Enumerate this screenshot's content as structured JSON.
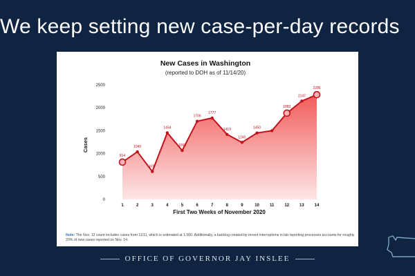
{
  "slide": {
    "title": "We keep setting new case-per-day records",
    "note_label": "Note:",
    "note_text": " The Nov. 12 count includes cases from 11/11, which is estimated at 1,500. Additionally, a backlog created by recent interruptions in lab reporting processes accounts for roughly 20% of new cases reported on Nov. 14.",
    "footer": "Office of Governor Jay Inslee",
    "logo_icon": "washington-state-map-icon"
  },
  "chart_data": {
    "type": "area",
    "title": "New Cases in Washington",
    "subtitle": "(reported to DOH as of 11/14/20)",
    "xlabel": "First Two Weeks of November 2020",
    "ylabel": "Cases",
    "x": [
      1,
      2,
      3,
      4,
      5,
      6,
      7,
      8,
      9,
      10,
      11,
      12,
      13,
      14
    ],
    "values": [
      814,
      1040,
      608,
      1454,
      1068,
      1706,
      1777,
      1419,
      1245,
      1450,
      1500,
      1883,
      2147,
      2286
    ],
    "value_labels": [
      "814",
      "1040",
      "608",
      "1454",
      "1068",
      "1706",
      "1777",
      "1419",
      "1245",
      "1450",
      "",
      "1883",
      "2147",
      "2286"
    ],
    "highlighted_points": [
      1,
      12,
      14
    ],
    "highlight_band": [
      11,
      12
    ],
    "ylim": [
      0,
      2500
    ],
    "yticks": [
      0,
      500,
      1000,
      1500,
      2000,
      2500
    ],
    "grid": false,
    "colors": {
      "line": "#c0121a",
      "fill_top": "#f25c5c",
      "fill_bottom": "#fde6e6",
      "band": "#d8443f"
    }
  }
}
